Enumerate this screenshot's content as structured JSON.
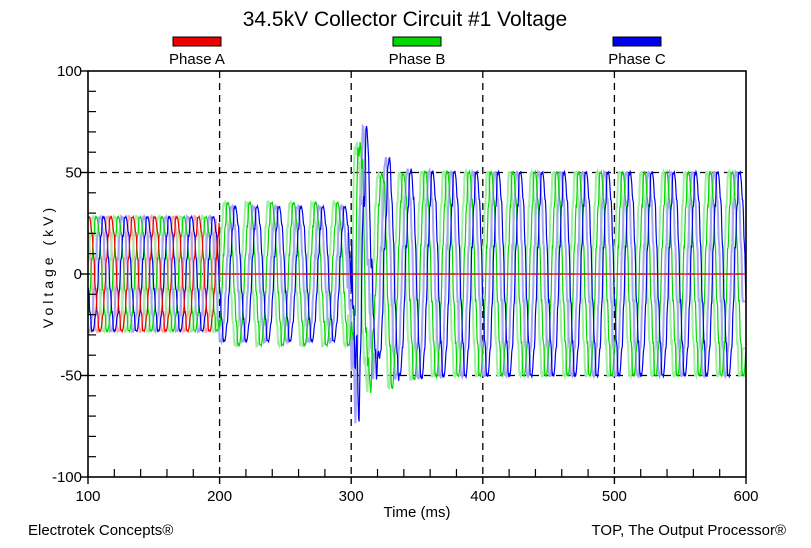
{
  "footer": {
    "left": "Electrotek Concepts®",
    "right": "TOP, The Output Processor®"
  },
  "chart_data": {
    "type": "line",
    "title": "34.5kV Collector Circuit #1 Voltage",
    "xlabel": "Time (ms)",
    "ylabel": "Voltage (kV)",
    "xlim": [
      100,
      600
    ],
    "ylim": [
      -100,
      100
    ],
    "x_major_ticks": [
      100,
      200,
      300,
      400,
      500,
      600
    ],
    "x_minor_step": 20,
    "y_major_ticks": [
      100,
      50,
      0,
      -50,
      -100
    ],
    "y_minor_step": 10,
    "grid_x": [
      200,
      300,
      400,
      500
    ],
    "grid_y": [
      50,
      0,
      -50
    ],
    "grid_style": "dashed",
    "legend_position": "top",
    "frequency_hz": 60,
    "sample_step_ms": 0.4,
    "light_trace_lead_ms": 2.6,
    "harmonics": [
      {
        "n": 5,
        "k": 0.03,
        "p": 1.0
      },
      {
        "n": 11,
        "k": 0.05,
        "p": 0.4
      },
      {
        "n": 13,
        "k": 0.04,
        "p": 0.0
      }
    ],
    "series": [
      {
        "name": "Phase A",
        "color": "#ee0000",
        "light_color": "#f5a8a8",
        "phase_deg": 70,
        "light_t1": 200,
        "segments": [
          {
            "t0": 100,
            "t1": 200,
            "amp": 28
          },
          {
            "t0": 200,
            "t1": 600,
            "amp": 0
          }
        ]
      },
      {
        "name": "Phase B",
        "color": "#00d800",
        "light_color": "#a2eea2",
        "phase_deg": -50,
        "segments": [
          {
            "t0": 100,
            "t1": 200,
            "amp": 28
          },
          {
            "t0": 200,
            "t1": 300,
            "amp": 35
          },
          {
            "t0": 300,
            "t1": 600,
            "amp": 50,
            "overshoot": 6,
            "overshoot_decay_ms": 25
          }
        ],
        "transient": {
          "t0": 300,
          "t1": 370,
          "decay_ms": 14,
          "components": [
            {
              "amp": 26,
              "period_ms": 9.3,
              "phase": 2.9
            },
            {
              "amp": 16,
              "period_ms": 4.1,
              "phase": 0.4
            },
            {
              "amp": 9,
              "period_ms": 2.3,
              "phase": 1.5
            }
          ]
        }
      },
      {
        "name": "Phase C",
        "color": "#0000ee",
        "light_color": "#a6a6f2",
        "phase_deg": 190,
        "segments": [
          {
            "t0": 100,
            "t1": 200,
            "amp": 28
          },
          {
            "t0": 200,
            "t1": 300,
            "amp": 33
          },
          {
            "t0": 300,
            "t1": 600,
            "amp": 50,
            "overshoot": 6,
            "overshoot_decay_ms": 25
          }
        ],
        "transient": {
          "t0": 300,
          "t1": 370,
          "decay_ms": 14,
          "components": [
            {
              "amp": 34,
              "period_ms": 9.3,
              "phase": 0.2
            },
            {
              "amp": 20,
              "period_ms": 4.1,
              "phase": 1.3
            },
            {
              "amp": 12,
              "period_ms": 2.3,
              "phase": 2.2
            }
          ]
        }
      }
    ]
  }
}
